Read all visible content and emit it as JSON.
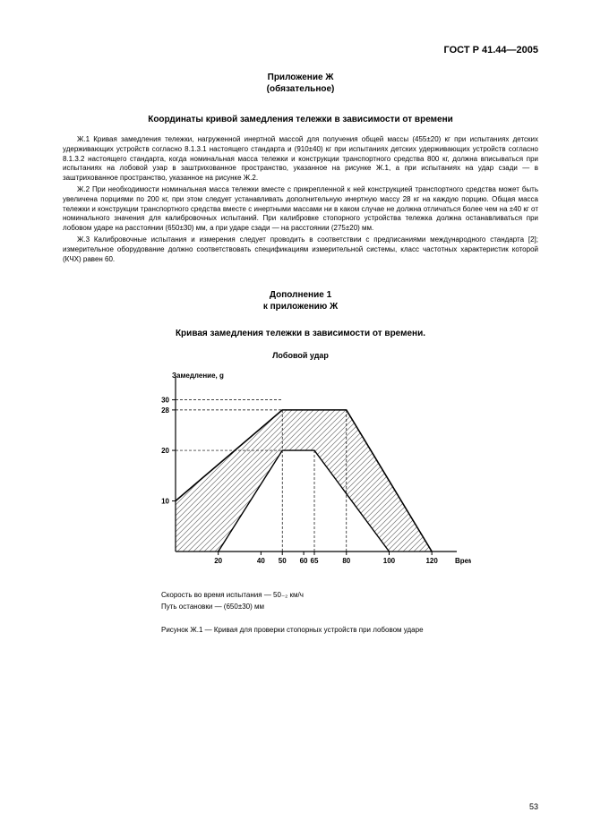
{
  "doc_id": "ГОСТ Р 41.44—2005",
  "appendix_label": "Приложение Ж",
  "appendix_note": "(обязательное)",
  "title": "Координаты кривой замедления тележки в зависимости от времени",
  "para1": "Ж.1 Кривая замедления тележки, нагруженной инертной массой для получения общей массы (455±20) кг при испытаниях детских удерживающих устройств согласно 8.1.3.1 настоящего стандарта и (910±40) кг при испытаниях детских удерживающих устройств согласно 8.1.3.2 настоящего стандарта, когда номинальная масса тележки и конструкции транспортного средства 800 кг, должна вписываться при испытаниях на лобовой узар в заштрихованное пространство, указанное на рисунке Ж.1, а при испытаниях на удар сзади — в заштрихованное пространство, указанное на рисунке Ж.2.",
  "para2": "Ж.2 При необходимости номинальная масса тележки вместе с прикрепленной к ней конструкцией транспортного средства может быть увеличена порциями по 200 кг, при этом следует устанавливать дополнительную инертную массу 28 кг на каждую порцию. Общая масса тележки и конструкции транспортного средства вместе с инертными массами ни в каком случае не должна отличаться более чем на ±40 кг от номинального значения для калибровочных испытаний. При калибровке стопорного устройства тележка должна останавливаться при лобовом ударе на расстоянии (650±30) мм, а при ударе сзади — на расстоянии (275±20) мм.",
  "para3": "Ж.3 Калибровочные испытания и измерения следует проводить в соответствии с предписаниями международного стандарта [2]; измерительное оборудование должно соответствовать спецификациям измерительной системы, класс частотных характеристик которой (КЧХ) равен 60.",
  "addendum_label": "Дополнение 1",
  "addendum_to": "к приложению Ж",
  "subtitle": "Кривая замедления тележки в зависимости от времени.",
  "chart": {
    "type": "line",
    "top_caption": "Лобовой удар",
    "y_label": "Замедление, g",
    "x_label": "Время, мс",
    "background_color": "#ffffff",
    "axis_color": "#000000",
    "line_color": "#000000",
    "line_width_outer": 1.6,
    "line_width_inner": 1.4,
    "tick_fontsize": 8,
    "label_fontsize": 8,
    "x_ticks": [
      20,
      40,
      50,
      60,
      65,
      80,
      100,
      120
    ],
    "y_ticks": [
      10,
      20,
      28,
      30
    ],
    "xlim": [
      0,
      130
    ],
    "ylim": [
      0,
      34
    ],
    "upper_curve": [
      {
        "x": 0,
        "y": 10
      },
      {
        "x": 50,
        "y": 28
      },
      {
        "x": 80,
        "y": 28
      },
      {
        "x": 120,
        "y": 0
      }
    ],
    "lower_curve": [
      {
        "x": 20,
        "y": 0
      },
      {
        "x": 50,
        "y": 20
      },
      {
        "x": 65,
        "y": 20
      },
      {
        "x": 100,
        "y": 0
      }
    ],
    "hatch_color": "#000000",
    "hatch_opacity": 0.55
  },
  "below_chart_line1": "Скорость во время испытания — 50₋₂ км/ч",
  "below_chart_line2": "Путь остановки — (650±30) мм",
  "figure_caption": "Рисунок Ж.1 — Кривая для проверки стопорных устройств при лобовом ударе",
  "page_number": "53"
}
